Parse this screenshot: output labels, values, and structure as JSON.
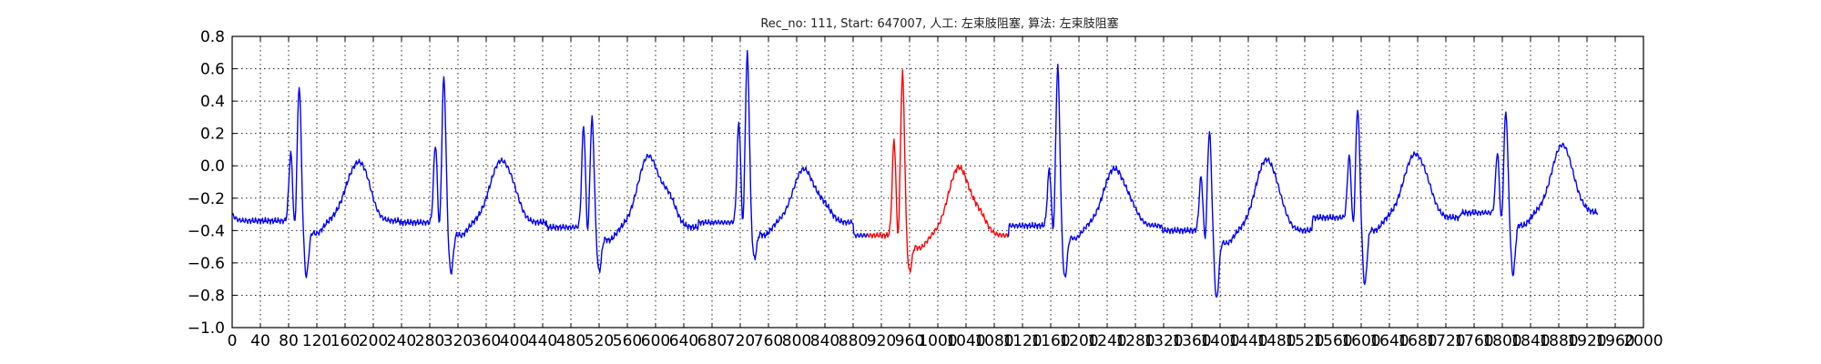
{
  "chart_data": {
    "type": "line",
    "title": "Rec_no: 111, Start: 647007, 人工: 左束肢阻塞, 算法: 左束肢阻塞",
    "xlabel": "",
    "ylabel": "",
    "ylim": [
      -1.0,
      0.8
    ],
    "xlim": [
      0,
      2000
    ],
    "grid": true,
    "yticks": [
      -1.0,
      -0.8,
      -0.6,
      -0.4,
      -0.2,
      0.0,
      0.2,
      0.4,
      0.6,
      0.8
    ],
    "ytick_labels": [
      "−1.0",
      "−0.8",
      "−0.6",
      "−0.4",
      "−0.2",
      "0.0",
      "0.2",
      "0.4",
      "0.6",
      "0.8"
    ],
    "xticks": [
      0,
      40,
      80,
      120,
      160,
      200,
      240,
      280,
      320,
      360,
      400,
      440,
      480,
      520,
      560,
      600,
      640,
      680,
      720,
      760,
      800,
      840,
      880,
      920,
      960,
      1000,
      1040,
      1080,
      1120,
      1160,
      1200,
      1240,
      1280,
      1320,
      1360,
      1400,
      1440,
      1480,
      1520,
      1560,
      1600,
      1640,
      1680,
      1720,
      1760,
      1800,
      1840,
      1880,
      1920,
      1960,
      2000
    ],
    "xtick_labels": [
      "0",
      "40",
      "80",
      "120",
      "160",
      "200",
      "240",
      "280",
      "320",
      "360",
      "400",
      "440",
      "480",
      "520",
      "560",
      "600",
      "640",
      "680",
      "720",
      "760",
      "800",
      "840",
      "880",
      "920",
      "960",
      "1000",
      "1040",
      "1080",
      "1120",
      "1160",
      "1200",
      "1240",
      "1280",
      "1320",
      "1360",
      "1400",
      "1440",
      "1480",
      "1520",
      "1560",
      "1600",
      "1640",
      "1680",
      "1720",
      "1760",
      "1800",
      "1840",
      "1880",
      "1920",
      "1960",
      "2000"
    ],
    "beats": [
      {
        "r": 95,
        "r_amp": 0.5,
        "q_amp": 0.08,
        "s_amp": -0.66,
        "p_amp": -0.22,
        "t_amp": -0.02,
        "base": -0.34
      },
      {
        "r": 300,
        "r_amp": 0.55,
        "q_amp": 0.13,
        "s_amp": -0.64,
        "p_amp": -0.25,
        "t_amp": 0.02,
        "base": -0.35
      },
      {
        "r": 510,
        "r_amp": 0.3,
        "q_amp": 0.25,
        "s_amp": -0.63,
        "p_amp": -0.3,
        "t_amp": 0.06,
        "base": -0.38
      },
      {
        "r": 730,
        "r_amp": 0.7,
        "q_amp": 0.27,
        "s_amp": -0.55,
        "p_amp": -0.2,
        "t_amp": -0.02,
        "base": -0.35
      },
      {
        "r": 950,
        "r_amp": 0.58,
        "q_amp": 0.16,
        "s_amp": -0.63,
        "p_amp": -0.35,
        "t_amp": -0.01,
        "base": -0.43
      },
      {
        "r": 1170,
        "r_amp": 0.62,
        "q_amp": -0.02,
        "s_amp": -0.67,
        "p_amp": -0.27,
        "t_amp": -0.02,
        "base": -0.37
      },
      {
        "r": 1385,
        "r_amp": 0.22,
        "q_amp": -0.07,
        "s_amp": -0.8,
        "p_amp": -0.33,
        "t_amp": 0.03,
        "base": -0.4
      },
      {
        "r": 1595,
        "r_amp": 0.36,
        "q_amp": 0.06,
        "s_amp": -0.71,
        "p_amp": -0.26,
        "t_amp": 0.06,
        "base": -0.32
      },
      {
        "r": 1805,
        "r_amp": 0.34,
        "q_amp": 0.08,
        "s_amp": -0.65,
        "p_amp": -0.21,
        "t_amp": 0.13,
        "base": -0.29
      }
    ],
    "series": [
      {
        "name": "",
        "color": "#0000ff",
        "x_range": [
          0,
          900
        ]
      },
      {
        "name": "",
        "color": "#ff0000",
        "x_range": [
          900,
          1100
        ]
      },
      {
        "name": "",
        "color": "#0000ff",
        "x_range": [
          1100,
          1935
        ]
      }
    ]
  }
}
